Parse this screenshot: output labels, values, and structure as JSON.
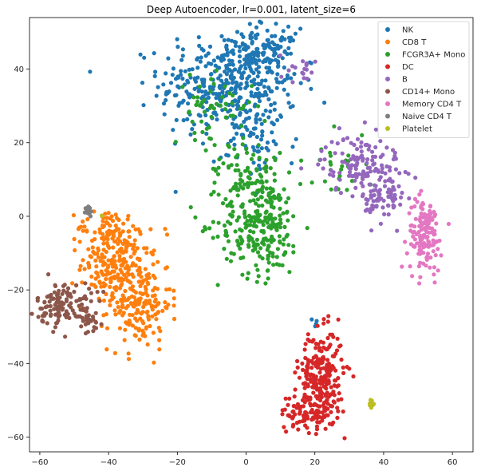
{
  "chart_data": {
    "type": "scatter",
    "title": "Deep Autoencoder, lr=0.001, latent_size=6",
    "xlabel": "",
    "ylabel": "",
    "xlim": [
      -63,
      66
    ],
    "ylim": [
      -64,
      54
    ],
    "xticks": [
      -60,
      -40,
      -20,
      0,
      20,
      40,
      60
    ],
    "yticks": [
      -60,
      -40,
      -20,
      0,
      20,
      40
    ],
    "xtick_labels": [
      "−60",
      "−40",
      "−20",
      "0",
      "20",
      "40",
      "60"
    ],
    "ytick_labels": [
      "−60",
      "−40",
      "−20",
      "0",
      "20",
      "40"
    ],
    "legend_position": "top-right",
    "grid": false,
    "series": [
      {
        "name": "NK",
        "color": "#1f77b4",
        "clusters": [
          {
            "cx": -5,
            "cy": 36,
            "sx": 10,
            "sy": 7,
            "n": 380
          },
          {
            "cx": 5,
            "cy": 45,
            "sx": 5,
            "sy": 3,
            "n": 90
          },
          {
            "cx": 3,
            "cy": 20,
            "sx": 6,
            "sy": 5,
            "n": 60
          },
          {
            "cx": 20,
            "cy": -29,
            "sx": 0.5,
            "sy": 0.6,
            "n": 4
          }
        ]
      },
      {
        "name": "CD8 T",
        "color": "#ff7f0e",
        "clusters": [
          {
            "cx": -38,
            "cy": -13,
            "sx": 5,
            "sy": 6,
            "n": 220
          },
          {
            "cx": -31,
            "cy": -24,
            "sx": 4.5,
            "sy": 6,
            "n": 160
          },
          {
            "cx": -41,
            "cy": -3,
            "sx": 4,
            "sy": 2.5,
            "n": 50
          }
        ]
      },
      {
        "name": "FCGR3A+ Mono",
        "color": "#2ca02c",
        "clusters": [
          {
            "cx": 4,
            "cy": -2,
            "sx": 6,
            "sy": 7,
            "n": 260
          },
          {
            "cx": 0,
            "cy": 13,
            "sx": 5,
            "sy": 5,
            "n": 70
          },
          {
            "cx": -10,
            "cy": 30,
            "sx": 6,
            "sy": 4,
            "n": 50
          },
          {
            "cx": 27,
            "cy": 15,
            "sx": 4,
            "sy": 5,
            "n": 25
          }
        ]
      },
      {
        "name": "DC",
        "color": "#d62728",
        "clusters": [
          {
            "cx": 22,
            "cy": -43,
            "sx": 3.2,
            "sy": 6,
            "n": 230
          },
          {
            "cx": 18,
            "cy": -53,
            "sx": 4,
            "sy": 2.5,
            "n": 100
          }
        ]
      },
      {
        "name": "B",
        "color": "#9467bd",
        "clusters": [
          {
            "cx": 34,
            "cy": 14,
            "sx": 6,
            "sy": 4,
            "n": 140
          },
          {
            "cx": 40,
            "cy": 4,
            "sx": 3,
            "sy": 3,
            "n": 60
          },
          {
            "cx": 16,
            "cy": 40,
            "sx": 3,
            "sy": 2,
            "n": 18
          }
        ]
      },
      {
        "name": "CD14+ Mono",
        "color": "#8c564b",
        "clusters": [
          {
            "cx": -53,
            "cy": -24,
            "sx": 4,
            "sy": 3,
            "n": 120
          },
          {
            "cx": -46,
            "cy": -28,
            "sx": 2,
            "sy": 2,
            "n": 25
          }
        ]
      },
      {
        "name": "Memory CD4 T",
        "color": "#e377c2",
        "clusters": [
          {
            "cx": 52,
            "cy": -5,
            "sx": 2.5,
            "sy": 5,
            "n": 140
          }
        ]
      },
      {
        "name": "Naive CD4 T",
        "color": "#7f7f7f",
        "clusters": [
          {
            "cx": -46,
            "cy": 2,
            "sx": 0.8,
            "sy": 1,
            "n": 15
          }
        ]
      },
      {
        "name": "Platelet",
        "color": "#bcbd22",
        "clusters": [
          {
            "cx": 36.5,
            "cy": -51,
            "sx": 0.3,
            "sy": 0.7,
            "n": 10
          },
          {
            "cx": -42,
            "cy": 0,
            "sx": 0.2,
            "sy": 0.3,
            "n": 2
          }
        ]
      }
    ]
  }
}
